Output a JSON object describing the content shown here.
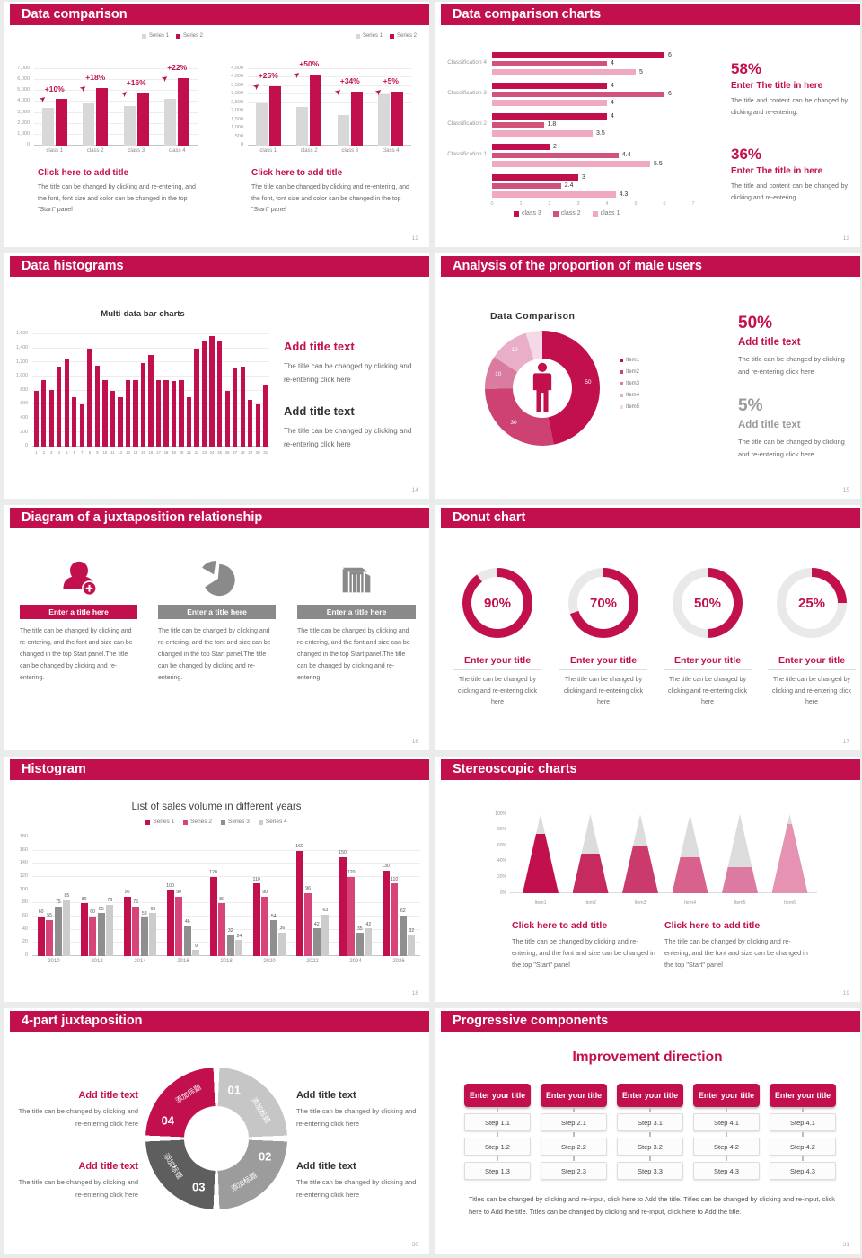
{
  "theme": {
    "accent": "#c2104e",
    "growth_arrow_icon": "➤"
  },
  "slides": {
    "s12": {
      "title": "Data comparison",
      "page": "12",
      "panels": [
        {
          "block_title": "Click here to add title",
          "block_body": "The title can be changed by clicking and re-entering, and the font, font size and color can be changed in the top \"Start\" panel",
          "chart_data": {
            "type": "bar",
            "categories": [
              "class 1",
              "class 2",
              "class 3",
              "class 4"
            ],
            "ylim": [
              0,
              7000
            ],
            "ystep": 1000,
            "series": [
              {
                "name": "Series 1",
                "color": "#d8d8d8",
                "values": [
                  3500,
                  3850,
                  3650,
                  4300
                ]
              },
              {
                "name": "Series 2",
                "color": "#c2104e",
                "values": [
                  4250,
                  5300,
                  4800,
                  6200
                ]
              }
            ],
            "annotations": [
              "+10%",
              "+18%",
              "+16%",
              "+22%"
            ]
          }
        },
        {
          "block_title": "Click here to add title",
          "block_body": "The title can be changed by clicking and re-entering, and the font, font size and color can be changed in the top \"Start\" panel",
          "chart_data": {
            "type": "bar",
            "categories": [
              "class 1",
              "class 2",
              "class 3",
              "class 4"
            ],
            "ylim": [
              0,
              4500
            ],
            "ystep": 500,
            "series": [
              {
                "name": "Series 1",
                "color": "#d8d8d8",
                "values": [
                  2500,
                  2300,
                  1800,
                  3000
                ]
              },
              {
                "name": "Series 2",
                "color": "#c2104e",
                "values": [
                  3500,
                  4200,
                  3200,
                  3200
                ]
              }
            ],
            "annotations": [
              "+25%",
              "+50%",
              "+34%",
              "+5%"
            ]
          }
        }
      ]
    },
    "s13": {
      "title": "Data comparison charts",
      "page": "13",
      "chart_data": {
        "type": "bar-horizontal",
        "xlim": [
          0,
          7
        ],
        "categories": [
          "Classification 4",
          "Classification 3",
          "Classification 2",
          "Classification 1",
          ""
        ],
        "series": [
          {
            "name": "class 3",
            "color": "#c2104e",
            "values": [
              6,
              4,
              4,
              2,
              3
            ]
          },
          {
            "name": "class 2",
            "color": "#d0537c",
            "values": [
              4,
              6,
              1.8,
              4.4,
              2.4
            ]
          },
          {
            "name": "class 1",
            "color": "#efa9c3",
            "values": [
              5,
              4,
              3.5,
              5.5,
              4.3
            ]
          }
        ]
      },
      "stats": [
        {
          "percent": "58%",
          "title": "Enter The title in here",
          "body": "The title and content can be changed by clicking and re-entering."
        },
        {
          "percent": "36%",
          "title": "Enter The title in here",
          "body": "The title and content can be changed by clicking and re-entering."
        }
      ]
    },
    "s14": {
      "title": "Data histograms",
      "page": "14",
      "chart_title": "Multi-data bar charts",
      "chart_data": {
        "type": "bar",
        "ylim": [
          0,
          1600
        ],
        "ystep": 200,
        "categories": [
          "1",
          "2",
          "3",
          "4",
          "5",
          "6",
          "7",
          "8",
          "9",
          "10",
          "11",
          "12",
          "13",
          "14",
          "15",
          "16",
          "17",
          "18",
          "19",
          "20",
          "21",
          "22",
          "23",
          "24",
          "25",
          "26",
          "27",
          "28",
          "29",
          "30",
          "31"
        ],
        "series": [
          {
            "name": "Series 1",
            "color": "#c2104e",
            "values": [
              800,
              950,
              810,
              1140,
              1260,
              700,
              600,
              1400,
              1150,
              950,
              790,
              700,
              950,
              950,
              1190,
              1300,
              950,
              950,
              930,
              950,
              700,
              1400,
              1500,
              1580,
              1500,
              800,
              1130,
              1140,
              660,
              600,
              880
            ]
          }
        ]
      },
      "blocks": [
        {
          "title": "Add title text",
          "body": "The title can be changed by clicking and re-entering click here"
        },
        {
          "title": "Add title text",
          "body": "The title can be changed by clicking and re-entering click here"
        }
      ]
    },
    "s15": {
      "title": "Analysis of the proportion of male users",
      "page": "15",
      "chart_title": "Data Comparison",
      "chart_data": {
        "type": "pie",
        "labels": [
          "Item1",
          "Item2",
          "Item3",
          "Item4",
          "Item5"
        ],
        "values": [
          50,
          30,
          10,
          12,
          5
        ],
        "colors": [
          "#c2104e",
          "#cd4273",
          "#da7ba0",
          "#e9aec8",
          "#f6d9e6"
        ],
        "shown_labels": [
          "50",
          "30",
          "10",
          "12",
          ""
        ]
      },
      "stats": [
        {
          "percent": "50%",
          "title": "Add title text",
          "body": "The title can be changed by clicking and re-entering click here"
        },
        {
          "percent": "5%",
          "title": "Add title text",
          "body": "The title can be changed by clicking and re-entering click here"
        }
      ]
    },
    "s16": {
      "title": "Diagram of a juxtaposition relationship",
      "page": "16",
      "items": [
        {
          "title": "Enter a title here",
          "body": "The title can be changed by clicking and re-entering, and the font and size can be changed in the top Start panel.The title can be changed by clicking and re-entering."
        },
        {
          "title": "Enter a title here",
          "body": "The title can be changed by clicking and re-entering, and the font and size can be changed in the top Start panel.The title can be changed by clicking and re-entering."
        },
        {
          "title": "Enter a title here",
          "body": "The title can be changed by clicking and re-entering, and the font and size can be changed in the top Start panel.The title can be changed by clicking and re-entering."
        }
      ]
    },
    "s17": {
      "title": "Donut chart",
      "page": "17",
      "items": [
        {
          "percent_label": "90%",
          "title": "Enter your title",
          "body": "The title can be changed by clicking and re-entering click here"
        },
        {
          "percent_label": "70%",
          "title": "Enter your title",
          "body": "The title can be changed by clicking and re-entering click here"
        },
        {
          "percent_label": "50%",
          "title": "Enter your title",
          "body": "The title can be changed by clicking and re-entering click here"
        },
        {
          "percent_label": "25%",
          "title": "Enter your title",
          "body": "The title can be changed by clicking and re-entering click here"
        }
      ]
    },
    "s18": {
      "title": "Histogram",
      "page": "18",
      "chart_data": {
        "type": "bar",
        "title": "List of sales volume in different years",
        "ylim": [
          0,
          180
        ],
        "ystep": 20,
        "value_labels": true,
        "categories": [
          "2010",
          "2012",
          "2014",
          "2016",
          "2018",
          "2020",
          "2022",
          "2024",
          "2026"
        ],
        "series": [
          {
            "name": "Series 1",
            "color": "#c2104e",
            "values": [
              60,
              80,
              90,
              100,
              120,
              110,
              160,
              150,
              130
            ]
          },
          {
            "name": "Series 2",
            "color": "#d64479",
            "values": [
              55,
              60,
              75,
              90,
              80,
              90,
              96,
              120,
              110
            ]
          },
          {
            "name": "Series 3",
            "color": "#8f8f8f",
            "values": [
              75,
              65,
              58,
              46,
              32,
              54,
              42,
              35,
              62
            ]
          },
          {
            "name": "Series 4",
            "color": "#cccccc",
            "values": [
              85,
              78,
              65,
              9,
              24,
              36,
              63,
              42,
              32
            ]
          }
        ]
      }
    },
    "s19": {
      "title": "Stereoscopic charts",
      "page": "19",
      "chart_data": {
        "type": "cone",
        "categories": [
          "Item1",
          "Item2",
          "Item3",
          "Item4",
          "Item5",
          "Item6"
        ],
        "values": [
          75,
          50,
          60,
          45,
          33,
          88
        ],
        "colors": [
          "#c2104e",
          "#c62a5e",
          "#cb3a6c",
          "#d8618d",
          "#dd7aa1",
          "#e592b3"
        ],
        "ylabels": [
          "0%",
          "20%",
          "40%",
          "60%",
          "80%",
          "100%"
        ]
      },
      "blocks": [
        {
          "title": "Click here to add title",
          "body": "The title can be changed by clicking and re-entering, and the font and size can be changed in the top \"Start\" panel"
        },
        {
          "title": "Click here to add title",
          "body": "The title can be changed by clicking and re-entering, and the font and size can be changed in the top \"Start\" panel"
        }
      ]
    },
    "s20": {
      "title": "4-part juxtaposition",
      "page": "20",
      "parts": [
        {
          "num": "01",
          "label": "添加标题",
          "color": "#c6c6c6"
        },
        {
          "num": "02",
          "label": "添加标题",
          "color": "#9c9c9c"
        },
        {
          "num": "03",
          "label": "添加标题",
          "color": "#5e5e5e"
        },
        {
          "num": "04",
          "label": "添加标题",
          "color": "#c2104e"
        }
      ],
      "blocks_left": [
        {
          "title": "Add title text",
          "body": "The title can be changed by clicking and re-entering click here"
        },
        {
          "title": "Add title text",
          "body": "The title can be changed by clicking and re-entering click here"
        }
      ],
      "blocks_right": [
        {
          "title": "Add title text",
          "body": "The title can be changed by clicking and re-entering click here"
        },
        {
          "title": "Add title text",
          "body": "The title can be changed by clicking and re-entering click here"
        }
      ]
    },
    "s21": {
      "title": "Progressive components",
      "page": "21",
      "heading": "Improvement direction",
      "columns": [
        {
          "header": "Enter your title",
          "steps": [
            "Step 1.1",
            "Step 1.2",
            "Step 1.3"
          ]
        },
        {
          "header": "Enter your title",
          "steps": [
            "Step 2.1",
            "Step 2.2",
            "Step 2.3"
          ]
        },
        {
          "header": "Enter your title",
          "steps": [
            "Step 3.1",
            "Step 3.2",
            "Step 3.3"
          ]
        },
        {
          "header": "Enter your title",
          "steps": [
            "Step 4.1",
            "Step 4.2",
            "Step 4.3"
          ]
        },
        {
          "header": "Enter your title",
          "steps": [
            "Step 4.1",
            "Step 4.2",
            "Step 4.3"
          ]
        }
      ],
      "footer": "Titles can be changed by clicking and re-input, click here to Add the title. Titles can be changed by clicking and re-input, click here to Add the title. Titles can be changed by clicking and re-input, click here to Add the title."
    }
  }
}
